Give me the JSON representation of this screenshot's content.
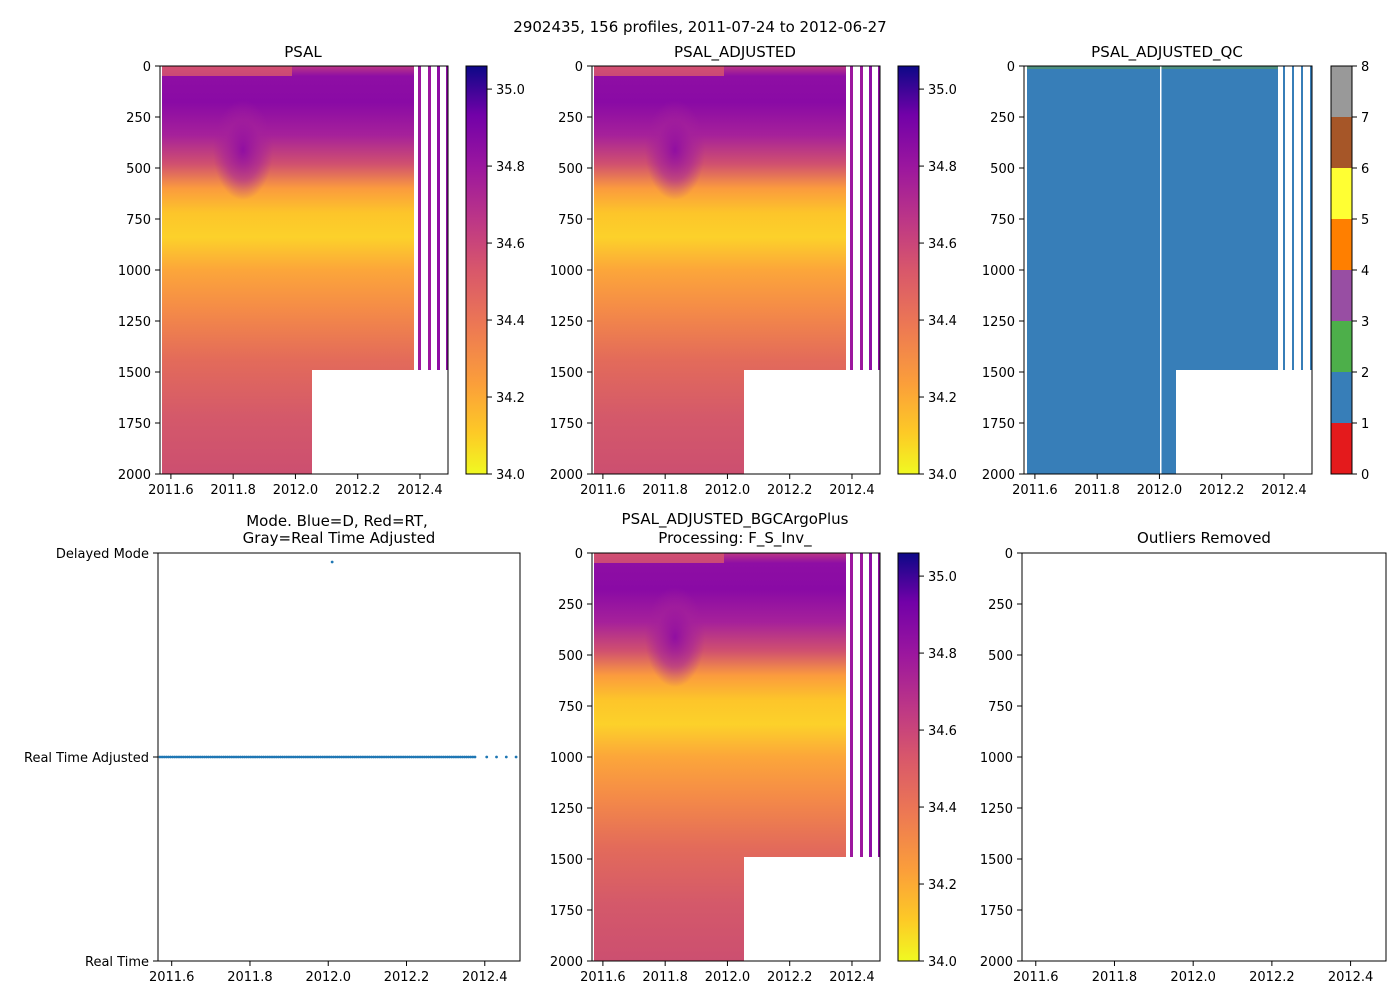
{
  "suptitle": "2902435, 156 profiles, 2011-07-24 to 2012-06-27",
  "chart_data": [
    {
      "id": "psal",
      "type": "heatmap",
      "title": "PSAL",
      "x_ticks": [
        "2011.6",
        "2011.8",
        "2012.0",
        "2012.2",
        "2012.4"
      ],
      "x_tick_values": [
        2011.6,
        2011.8,
        2012.0,
        2012.2,
        2012.4
      ],
      "y_ticks": [
        "0",
        "250",
        "500",
        "750",
        "1000",
        "1250",
        "1500",
        "1750",
        "2000"
      ],
      "y_tick_values": [
        0,
        250,
        500,
        750,
        1000,
        1250,
        1500,
        1750,
        2000
      ],
      "xlim": [
        2011.565,
        2012.49
      ],
      "ylim": [
        2000,
        0
      ],
      "y_inverted": true,
      "colormap": "plasma_r",
      "colorbar": {
        "ticks": [
          "34.0",
          "34.2",
          "34.4",
          "34.6",
          "34.8",
          "35.0"
        ],
        "tick_values": [
          34.0,
          34.2,
          34.4,
          34.6,
          34.8,
          35.0
        ],
        "range": [
          34.0,
          35.06
        ]
      },
      "profile_depth_limit_after_2012_05": 1500,
      "data_end_continuous": 2012.38,
      "sparse_profiles": [
        2012.4,
        2012.42,
        2012.45,
        2012.48
      ]
    },
    {
      "id": "psal-adjusted",
      "type": "heatmap",
      "title": "PSAL_ADJUSTED",
      "x_ticks": [
        "2011.6",
        "2011.8",
        "2012.0",
        "2012.2",
        "2012.4"
      ],
      "x_tick_values": [
        2011.6,
        2011.8,
        2012.0,
        2012.2,
        2012.4
      ],
      "y_ticks": [
        "0",
        "250",
        "500",
        "750",
        "1000",
        "1250",
        "1500",
        "1750",
        "2000"
      ],
      "y_tick_values": [
        0,
        250,
        500,
        750,
        1000,
        1250,
        1500,
        1750,
        2000
      ],
      "xlim": [
        2011.565,
        2012.49
      ],
      "ylim": [
        2000,
        0
      ],
      "colormap": "plasma_r",
      "colorbar": {
        "ticks": [
          "34.0",
          "34.2",
          "34.4",
          "34.6",
          "34.8",
          "35.0"
        ],
        "tick_values": [
          34.0,
          34.2,
          34.4,
          34.6,
          34.8,
          35.0
        ],
        "range": [
          34.0,
          35.06
        ]
      }
    },
    {
      "id": "psal-adjusted-qc",
      "type": "heatmap",
      "title": "PSAL_ADJUSTED_QC",
      "x_ticks": [
        "2011.6",
        "2011.8",
        "2012.0",
        "2012.2",
        "2012.4"
      ],
      "x_tick_values": [
        2011.6,
        2011.8,
        2012.0,
        2012.2,
        2012.4
      ],
      "y_ticks": [
        "0",
        "250",
        "500",
        "750",
        "1000",
        "1250",
        "1500",
        "1750",
        "2000"
      ],
      "y_tick_values": [
        0,
        250,
        500,
        750,
        1000,
        1250,
        1500,
        1750,
        2000
      ],
      "xlim": [
        2011.565,
        2012.49
      ],
      "ylim": [
        2000,
        0
      ],
      "dominant_qc_flag": 1,
      "colorbar": {
        "ticks": [
          "0",
          "1",
          "2",
          "3",
          "4",
          "5",
          "6",
          "7",
          "8"
        ],
        "tick_values": [
          0,
          1,
          2,
          3,
          4,
          5,
          6,
          7,
          8
        ],
        "categories": [
          {
            "flag": 0,
            "color": "#e41a1c"
          },
          {
            "flag": 1,
            "color": "#377eb8"
          },
          {
            "flag": 2,
            "color": "#4daf4a"
          },
          {
            "flag": 3,
            "color": "#984ea3"
          },
          {
            "flag": 4,
            "color": "#ff7f00"
          },
          {
            "flag": 5,
            "color": "#ffff33"
          },
          {
            "flag": 6,
            "color": "#a65628"
          },
          {
            "flag": 7,
            "color": "#f781bf"
          },
          {
            "flag": 8,
            "color": "#999999"
          }
        ]
      }
    },
    {
      "id": "mode",
      "type": "scatter",
      "title_line1": "Mode. Blue=D, Red=RT,",
      "title_line2": "Gray=Real Time Adjusted",
      "x_ticks": [
        "2011.6",
        "2011.8",
        "2012.0",
        "2012.2",
        "2012.4"
      ],
      "x_tick_values": [
        2011.6,
        2011.8,
        2012.0,
        2012.2,
        2012.4
      ],
      "y_ticks": [
        "Delayed Mode",
        "Real Time Adjusted",
        "Real Time"
      ],
      "y_tick_values": [
        2,
        1,
        0
      ],
      "xlim": [
        2011.565,
        2012.49
      ],
      "ylim": [
        0,
        2
      ],
      "point_color": "#1f77b4",
      "series": [
        {
          "name": "Delayed Mode",
          "x": [
            2012.01
          ],
          "y": 2
        },
        {
          "name": "Real Time Adjusted",
          "x_range": [
            2011.57,
            2012.375
          ],
          "n_points": 150,
          "extra_x": [
            2012.405,
            2012.43,
            2012.455,
            2012.48
          ],
          "y": 1
        }
      ]
    },
    {
      "id": "bgcargoplus",
      "type": "heatmap",
      "title_line1": "PSAL_ADJUSTED_BGCArgoPlus",
      "title_line2": "Processing: F_S_Inv_",
      "x_ticks": [
        "2011.6",
        "2011.8",
        "2012.0",
        "2012.2",
        "2012.4"
      ],
      "x_tick_values": [
        2011.6,
        2011.8,
        2012.0,
        2012.2,
        2012.4
      ],
      "y_ticks": [
        "0",
        "250",
        "500",
        "750",
        "1000",
        "1250",
        "1500",
        "1750",
        "2000"
      ],
      "y_tick_values": [
        0,
        250,
        500,
        750,
        1000,
        1250,
        1500,
        1750,
        2000
      ],
      "xlim": [
        2011.565,
        2012.49
      ],
      "ylim": [
        2000,
        0
      ],
      "colormap": "plasma_r",
      "colorbar": {
        "ticks": [
          "34.0",
          "34.2",
          "34.4",
          "34.6",
          "34.8",
          "35.0"
        ],
        "tick_values": [
          34.0,
          34.2,
          34.4,
          34.6,
          34.8,
          35.0
        ],
        "range": [
          34.0,
          35.06
        ]
      }
    },
    {
      "id": "outliers",
      "type": "scatter",
      "title": "Outliers Removed",
      "x_ticks": [
        "2011.6",
        "2011.8",
        "2012.0",
        "2012.2",
        "2012.4"
      ],
      "x_tick_values": [
        2011.6,
        2011.8,
        2012.0,
        2012.2,
        2012.4
      ],
      "y_ticks": [
        "0",
        "250",
        "500",
        "750",
        "1000",
        "1250",
        "1500",
        "1750",
        "2000"
      ],
      "y_tick_values": [
        0,
        250,
        500,
        750,
        1000,
        1250,
        1500,
        1750,
        2000
      ],
      "xlim": [
        2011.565,
        2012.49
      ],
      "ylim": [
        2000,
        0
      ],
      "points": []
    }
  ]
}
